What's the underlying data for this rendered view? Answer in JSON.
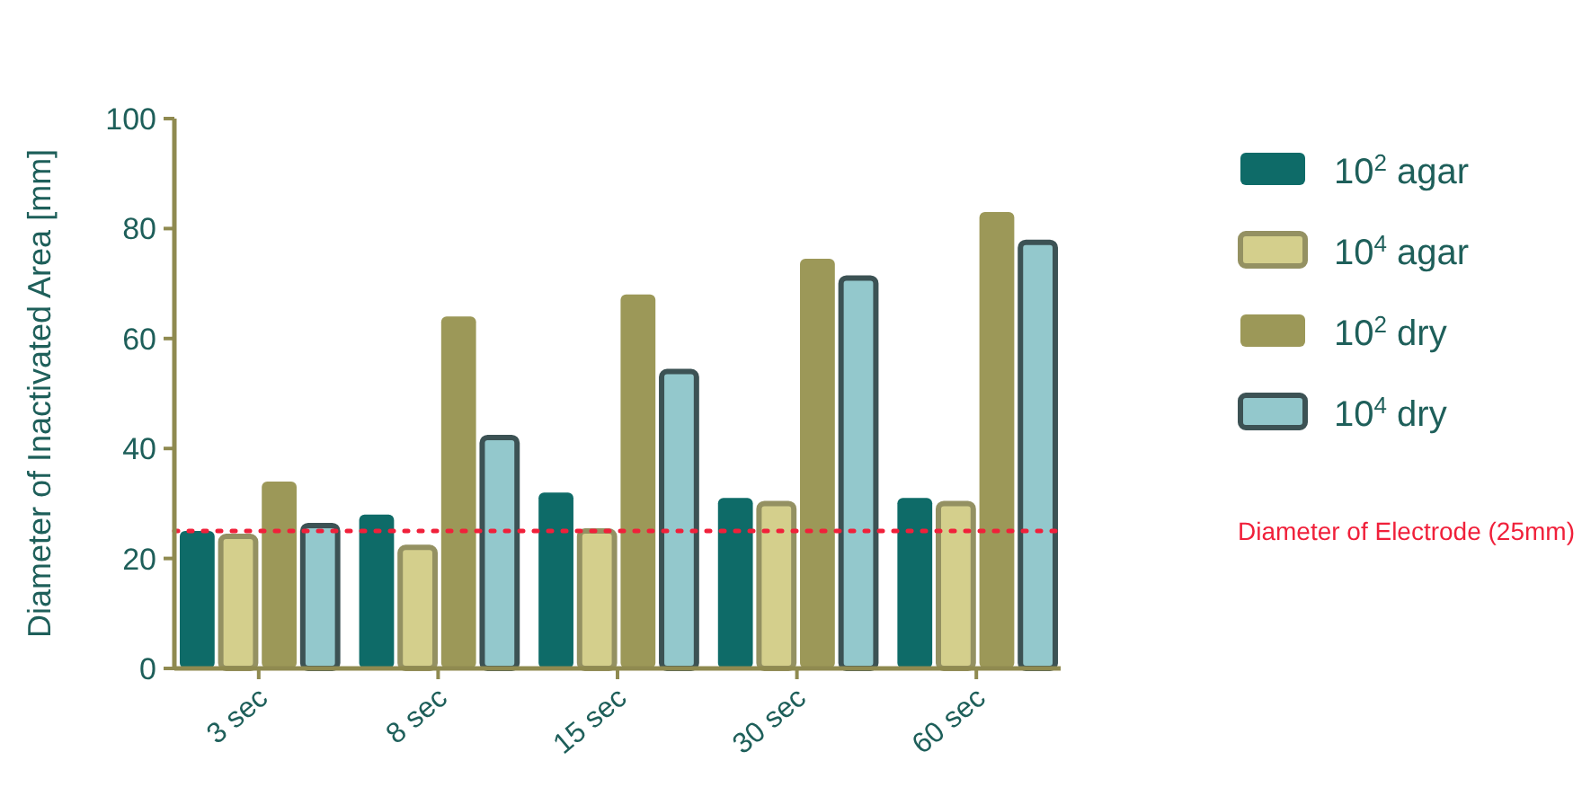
{
  "chart_data": {
    "type": "bar",
    "ylabel": "Diameter of Inactivated Area [mm]",
    "categories": [
      "3 sec",
      "8 sec",
      "15 sec",
      "30 sec",
      "60 sec"
    ],
    "series": [
      {
        "name": "10$^{2}$ agar",
        "color": "#0e6b68",
        "values": [
          25,
          28,
          32,
          31,
          31
        ]
      },
      {
        "name": "10$^{4}$ agar",
        "color": "#d4cf8c",
        "values": [
          24,
          22,
          25,
          30,
          30
        ]
      },
      {
        "name": "10$^{2}$ dry",
        "color": "#9c9858",
        "values": [
          34,
          64,
          68,
          74.5,
          83
        ]
      },
      {
        "name": "10$^{4}$ dry",
        "color": "#93c8cc",
        "values": [
          26,
          42,
          54,
          71,
          77.5
        ]
      }
    ],
    "ylim": [
      0,
      100
    ],
    "yticks": [
      0,
      20,
      40,
      60,
      80,
      100
    ],
    "grid": false,
    "legend": "right",
    "ref_lines": [
      {
        "axis": "y",
        "value": 25,
        "label": "Diameter of Electrode (25mm)",
        "color": "#f0203a",
        "line_style": "dotted"
      }
    ]
  }
}
